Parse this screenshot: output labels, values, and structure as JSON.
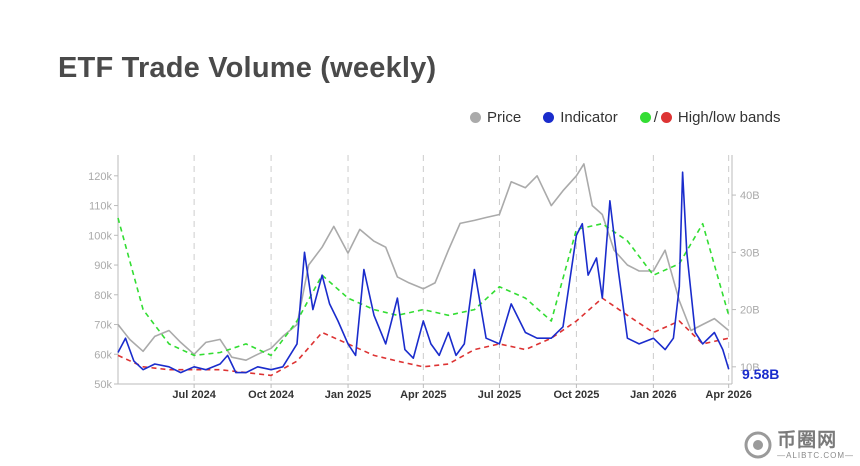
{
  "title": "ETF Trade Volume (weekly)",
  "legend": {
    "price": "Price",
    "indicator": "Indicator",
    "bands_slash": "/",
    "bands": "High/low bands"
  },
  "colors": {
    "price": "#aaaaaa",
    "indicator": "#1a2ccc",
    "high_band": "#33dd33",
    "low_band": "#dd3333",
    "grid": "#cccccc",
    "tick": "#aaaaaa"
  },
  "watermark": {
    "main": "币圈网",
    "sub": "—ALIBTC.COM—"
  },
  "chart_data": {
    "type": "line",
    "x_ticks": [
      "Jul 2024",
      "Oct 2024",
      "Jan 2025",
      "Apr 2025",
      "Jul 2025",
      "Oct 2025",
      "Jan 2026",
      "Apr 2026"
    ],
    "x_tick_dates": [
      "2024-07-01",
      "2024-10-01",
      "2025-01-01",
      "2025-04-01",
      "2025-07-01",
      "2025-10-01",
      "2026-01-01",
      "2026-04-01"
    ],
    "xlim": [
      "2024-04-01",
      "2026-04-05"
    ],
    "y_left": {
      "ticks": [
        "50k",
        "60k",
        "70k",
        "80k",
        "90k",
        "100k",
        "110k",
        "120k"
      ],
      "range": [
        50000,
        127000
      ]
    },
    "y_right": {
      "ticks": [
        "10B",
        "20B",
        "30B",
        "40B"
      ],
      "range": [
        7000000000,
        47000000000
      ]
    },
    "last_value_label": "9.58B",
    "series": [
      {
        "name": "Price",
        "axis": "left",
        "points": [
          [
            "2024-04-01",
            70000
          ],
          [
            "2024-04-15",
            65000
          ],
          [
            "2024-05-01",
            61000
          ],
          [
            "2024-05-15",
            66000
          ],
          [
            "2024-06-01",
            68000
          ],
          [
            "2024-06-15",
            64000
          ],
          [
            "2024-07-01",
            60000
          ],
          [
            "2024-07-15",
            64000
          ],
          [
            "2024-08-01",
            65000
          ],
          [
            "2024-08-15",
            59000
          ],
          [
            "2024-09-01",
            58000
          ],
          [
            "2024-09-15",
            60000
          ],
          [
            "2024-10-01",
            62000
          ],
          [
            "2024-10-15",
            66000
          ],
          [
            "2024-11-01",
            70000
          ],
          [
            "2024-11-15",
            90000
          ],
          [
            "2024-12-01",
            96000
          ],
          [
            "2024-12-15",
            103000
          ],
          [
            "2025-01-01",
            94000
          ],
          [
            "2025-01-15",
            102000
          ],
          [
            "2025-02-01",
            98000
          ],
          [
            "2025-02-15",
            96000
          ],
          [
            "2025-03-01",
            86000
          ],
          [
            "2025-03-15",
            84000
          ],
          [
            "2025-04-01",
            82000
          ],
          [
            "2025-04-15",
            84000
          ],
          [
            "2025-05-01",
            95000
          ],
          [
            "2025-05-15",
            104000
          ],
          [
            "2025-06-01",
            105000
          ],
          [
            "2025-06-15",
            106000
          ],
          [
            "2025-07-01",
            107000
          ],
          [
            "2025-07-15",
            118000
          ],
          [
            "2025-08-01",
            116000
          ],
          [
            "2025-08-15",
            120000
          ],
          [
            "2025-09-01",
            110000
          ],
          [
            "2025-09-15",
            115000
          ],
          [
            "2025-10-01",
            120000
          ],
          [
            "2025-10-10",
            124000
          ],
          [
            "2025-10-20",
            110000
          ],
          [
            "2025-11-01",
            107000
          ],
          [
            "2025-11-15",
            95000
          ],
          [
            "2025-12-01",
            90000
          ],
          [
            "2025-12-15",
            88000
          ],
          [
            "2026-01-01",
            88000
          ],
          [
            "2026-01-15",
            95000
          ],
          [
            "2026-02-01",
            78000
          ],
          [
            "2026-02-15",
            68000
          ],
          [
            "2026-03-01",
            70000
          ],
          [
            "2026-03-15",
            72000
          ],
          [
            "2026-04-01",
            68000
          ]
        ]
      },
      {
        "name": "Indicator",
        "axis": "right",
        "points": [
          [
            "2024-04-01",
            12.5
          ],
          [
            "2024-04-10",
            15
          ],
          [
            "2024-04-20",
            11
          ],
          [
            "2024-05-01",
            9.5
          ],
          [
            "2024-05-15",
            10.5
          ],
          [
            "2024-06-01",
            10
          ],
          [
            "2024-06-15",
            9
          ],
          [
            "2024-07-01",
            10
          ],
          [
            "2024-07-15",
            9.5
          ],
          [
            "2024-08-01",
            10.5
          ],
          [
            "2024-08-10",
            12
          ],
          [
            "2024-08-20",
            9
          ],
          [
            "2024-09-01",
            9
          ],
          [
            "2024-09-15",
            10
          ],
          [
            "2024-10-01",
            9.5
          ],
          [
            "2024-10-15",
            10
          ],
          [
            "2024-11-01",
            14
          ],
          [
            "2024-11-10",
            30
          ],
          [
            "2024-11-20",
            20
          ],
          [
            "2024-12-01",
            26
          ],
          [
            "2024-12-10",
            21
          ],
          [
            "2024-12-20",
            18
          ],
          [
            "2025-01-01",
            14
          ],
          [
            "2025-01-10",
            12
          ],
          [
            "2025-01-20",
            27
          ],
          [
            "2025-02-01",
            19
          ],
          [
            "2025-02-15",
            14
          ],
          [
            "2025-03-01",
            22
          ],
          [
            "2025-03-10",
            13
          ],
          [
            "2025-03-20",
            11.5
          ],
          [
            "2025-04-01",
            18
          ],
          [
            "2025-04-10",
            14
          ],
          [
            "2025-04-20",
            12
          ],
          [
            "2025-05-01",
            16
          ],
          [
            "2025-05-10",
            12
          ],
          [
            "2025-05-20",
            14
          ],
          [
            "2025-06-01",
            27
          ],
          [
            "2025-06-15",
            15
          ],
          [
            "2025-07-01",
            14
          ],
          [
            "2025-07-15",
            21
          ],
          [
            "2025-08-01",
            16
          ],
          [
            "2025-08-15",
            15
          ],
          [
            "2025-09-01",
            15
          ],
          [
            "2025-09-15",
            17
          ],
          [
            "2025-10-01",
            33
          ],
          [
            "2025-10-08",
            35
          ],
          [
            "2025-10-15",
            26
          ],
          [
            "2025-10-25",
            29
          ],
          [
            "2025-11-01",
            22
          ],
          [
            "2025-11-10",
            39
          ],
          [
            "2025-11-20",
            27
          ],
          [
            "2025-12-01",
            15
          ],
          [
            "2025-12-15",
            14
          ],
          [
            "2026-01-01",
            15
          ],
          [
            "2026-01-15",
            13
          ],
          [
            "2026-01-25",
            15
          ],
          [
            "2026-02-01",
            24
          ],
          [
            "2026-02-05",
            44
          ],
          [
            "2026-02-10",
            30
          ],
          [
            "2026-02-20",
            16
          ],
          [
            "2026-03-01",
            14
          ],
          [
            "2026-03-15",
            16
          ],
          [
            "2026-03-25",
            13
          ],
          [
            "2026-04-01",
            9.58
          ]
        ]
      },
      {
        "name": "High band",
        "axis": "right",
        "points": [
          [
            "2024-04-01",
            36
          ],
          [
            "2024-05-01",
            20
          ],
          [
            "2024-06-01",
            14
          ],
          [
            "2024-07-01",
            12
          ],
          [
            "2024-08-01",
            12.5
          ],
          [
            "2024-09-01",
            14
          ],
          [
            "2024-10-01",
            12
          ],
          [
            "2024-11-01",
            18
          ],
          [
            "2024-12-01",
            26
          ],
          [
            "2025-01-01",
            22
          ],
          [
            "2025-02-01",
            20
          ],
          [
            "2025-03-01",
            19
          ],
          [
            "2025-04-01",
            20
          ],
          [
            "2025-05-01",
            19
          ],
          [
            "2025-06-01",
            20
          ],
          [
            "2025-07-01",
            24
          ],
          [
            "2025-08-01",
            22
          ],
          [
            "2025-09-01",
            18
          ],
          [
            "2025-10-01",
            34
          ],
          [
            "2025-11-01",
            35
          ],
          [
            "2025-12-01",
            32
          ],
          [
            "2026-01-01",
            26
          ],
          [
            "2026-02-01",
            28
          ],
          [
            "2026-03-01",
            35
          ],
          [
            "2026-04-01",
            19
          ]
        ]
      },
      {
        "name": "Low band",
        "axis": "right",
        "points": [
          [
            "2024-04-01",
            12
          ],
          [
            "2024-05-01",
            10
          ],
          [
            "2024-06-01",
            9.5
          ],
          [
            "2024-07-01",
            9.5
          ],
          [
            "2024-08-01",
            9.5
          ],
          [
            "2024-09-01",
            9
          ],
          [
            "2024-10-01",
            8.5
          ],
          [
            "2024-11-01",
            11
          ],
          [
            "2024-12-01",
            16
          ],
          [
            "2025-01-01",
            14
          ],
          [
            "2025-02-01",
            12
          ],
          [
            "2025-03-01",
            11
          ],
          [
            "2025-04-01",
            10
          ],
          [
            "2025-05-01",
            10.5
          ],
          [
            "2025-06-01",
            13
          ],
          [
            "2025-07-01",
            14
          ],
          [
            "2025-08-01",
            13
          ],
          [
            "2025-09-01",
            15
          ],
          [
            "2025-10-01",
            18
          ],
          [
            "2025-11-01",
            22
          ],
          [
            "2025-12-01",
            19
          ],
          [
            "2026-01-01",
            16
          ],
          [
            "2026-02-01",
            18
          ],
          [
            "2026-03-01",
            14
          ],
          [
            "2026-04-01",
            15
          ]
        ]
      }
    ],
    "grid": "vertical dashed"
  }
}
